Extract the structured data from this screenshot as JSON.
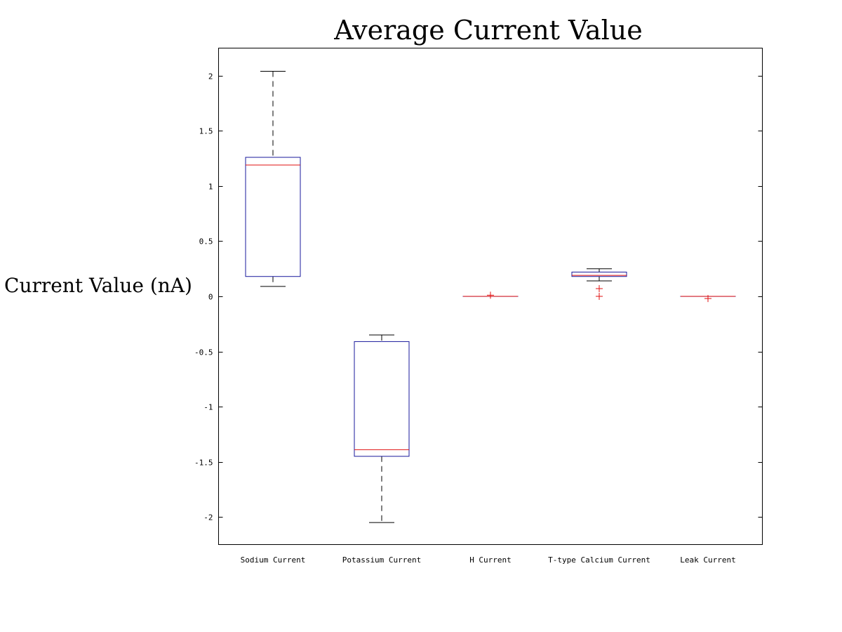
{
  "chart_data": {
    "type": "box",
    "title": "Average Current Value",
    "xlabel": "",
    "ylabel": "Current Value (nA)",
    "ylim": [
      -2.25,
      2.25
    ],
    "yticks": [
      2,
      1.5,
      1,
      0.5,
      0,
      -0.5,
      -1,
      -1.5,
      -2
    ],
    "ytick_labels": [
      "2",
      "1.5",
      "1",
      "0.5",
      "0",
      "-0.5",
      "-1",
      "-1.5",
      "-2"
    ],
    "grid": false,
    "colors": {
      "box": "#1a1a9c",
      "median": "#e01010",
      "whisker": "#000000",
      "outlier": "#e01010",
      "axis": "#000000"
    },
    "categories": [
      "Sodium Current",
      "Potassium Current",
      "H Current",
      "T-type Calcium Current",
      "Leak Current"
    ],
    "boxes": [
      {
        "whisker_low": 0.09,
        "q1": 0.18,
        "median": 1.19,
        "q3": 1.26,
        "whisker_high": 2.04,
        "outliers": []
      },
      {
        "whisker_low": -2.05,
        "q1": -1.45,
        "median": -1.39,
        "q3": -0.41,
        "whisker_high": -0.35,
        "outliers": []
      },
      {
        "whisker_low": 0.0,
        "q1": 0.0,
        "median": 0.0,
        "q3": 0.0,
        "whisker_high": 0.0,
        "outliers": [
          0.01
        ]
      },
      {
        "whisker_low": 0.14,
        "q1": 0.18,
        "median": 0.19,
        "q3": 0.22,
        "whisker_high": 0.25,
        "outliers": [
          0.07,
          0.0
        ]
      },
      {
        "whisker_low": 0.0,
        "q1": 0.0,
        "median": 0.0,
        "q3": 0.0,
        "whisker_high": 0.0,
        "outliers": [
          -0.02
        ]
      }
    ]
  }
}
